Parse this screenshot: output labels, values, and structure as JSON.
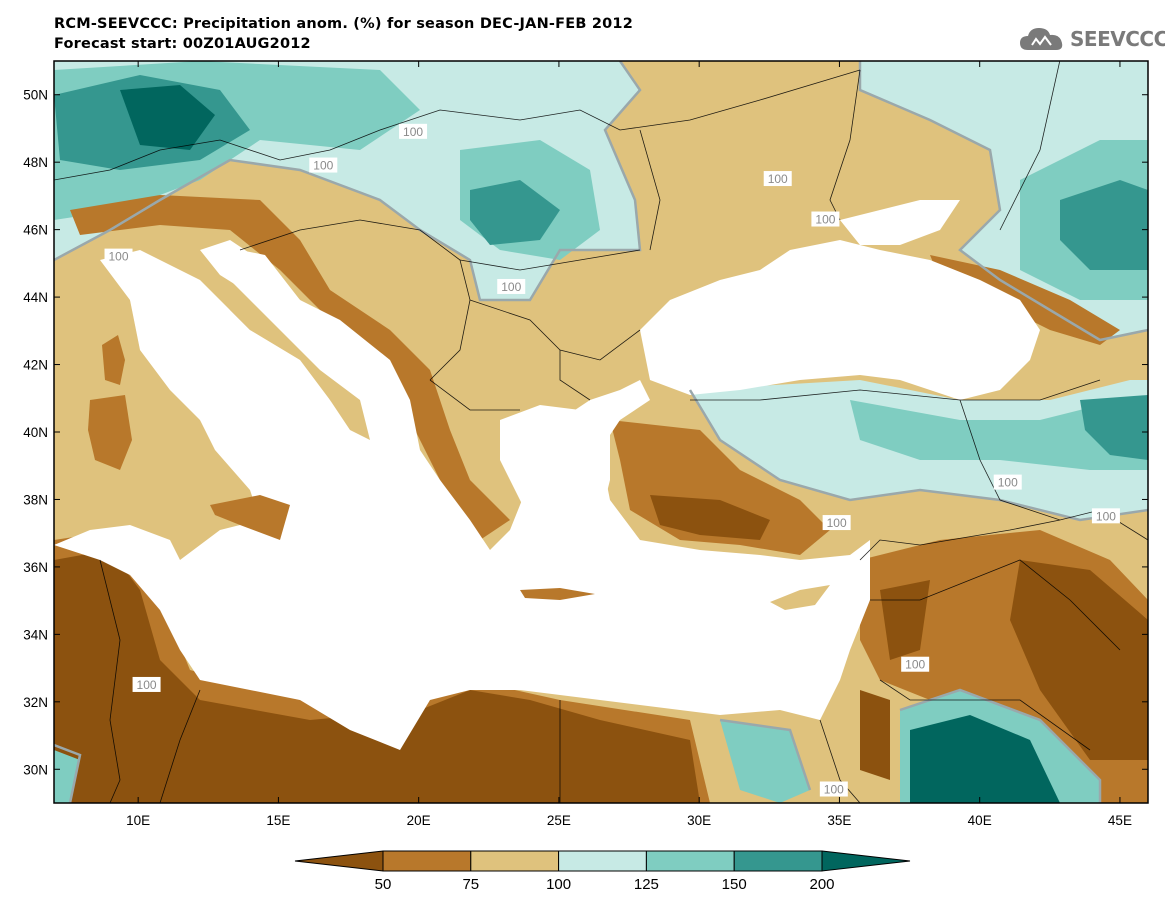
{
  "header": {
    "title": "RCM-SEEVCCC: Precipitation anom. (%) for season DEC-JAN-FEB 2012",
    "subtitle": "Forecast start: 00Z01AUG2012",
    "logo_text": "SEEVCCC",
    "logo_icon": "cloud-icon"
  },
  "map": {
    "extent": {
      "lon": [
        7,
        46
      ],
      "lat": [
        29,
        51
      ]
    },
    "lat_ticks": [
      {
        "value": 50,
        "label": "50N"
      },
      {
        "value": 48,
        "label": "48N"
      },
      {
        "value": 46,
        "label": "46N"
      },
      {
        "value": 44,
        "label": "44N"
      },
      {
        "value": 42,
        "label": "42N"
      },
      {
        "value": 40,
        "label": "40N"
      },
      {
        "value": 38,
        "label": "38N"
      },
      {
        "value": 36,
        "label": "36N"
      },
      {
        "value": 34,
        "label": "34N"
      },
      {
        "value": 32,
        "label": "32N"
      },
      {
        "value": 30,
        "label": "30N"
      }
    ],
    "lon_ticks": [
      {
        "value": 10,
        "label": "10E"
      },
      {
        "value": 15,
        "label": "15E"
      },
      {
        "value": 20,
        "label": "20E"
      },
      {
        "value": 25,
        "label": "25E"
      },
      {
        "value": 30,
        "label": "30E"
      },
      {
        "value": 35,
        "label": "35E"
      },
      {
        "value": 40,
        "label": "40E"
      },
      {
        "value": 45,
        "label": "45E"
      }
    ],
    "contour_label_text": "100",
    "contour_labels": [
      {
        "lon": 16.6,
        "lat": 47.9
      },
      {
        "lon": 9.3,
        "lat": 45.2
      },
      {
        "lon": 19.8,
        "lat": 48.9
      },
      {
        "lon": 23.3,
        "lat": 44.3
      },
      {
        "lon": 32.8,
        "lat": 47.5
      },
      {
        "lon": 34.5,
        "lat": 46.3
      },
      {
        "lon": 10.3,
        "lat": 32.5
      },
      {
        "lon": 37.7,
        "lat": 33.1
      },
      {
        "lon": 41.0,
        "lat": 38.5
      },
      {
        "lon": 44.5,
        "lat": 37.5
      },
      {
        "lon": 34.9,
        "lat": 37.3
      },
      {
        "lon": 34.8,
        "lat": 29.4
      }
    ],
    "colors": {
      "lt50": "#8c520f",
      "50_75": "#b8782b",
      "75_100": "#dfc27d",
      "100_125": "#c7eae5",
      "125_150": "#7fcdc1",
      "150_200": "#35978f",
      "gt200": "#01665e",
      "sea": "#ffffff",
      "contour": "#9aa8ab"
    }
  },
  "colorbar": {
    "labels": [
      "50",
      "75",
      "100",
      "125",
      "150",
      "200"
    ],
    "colors": [
      "#8c520f",
      "#b8782b",
      "#dfc27d",
      "#c7eae5",
      "#7fcdc1",
      "#35978f",
      "#01665e"
    ]
  }
}
